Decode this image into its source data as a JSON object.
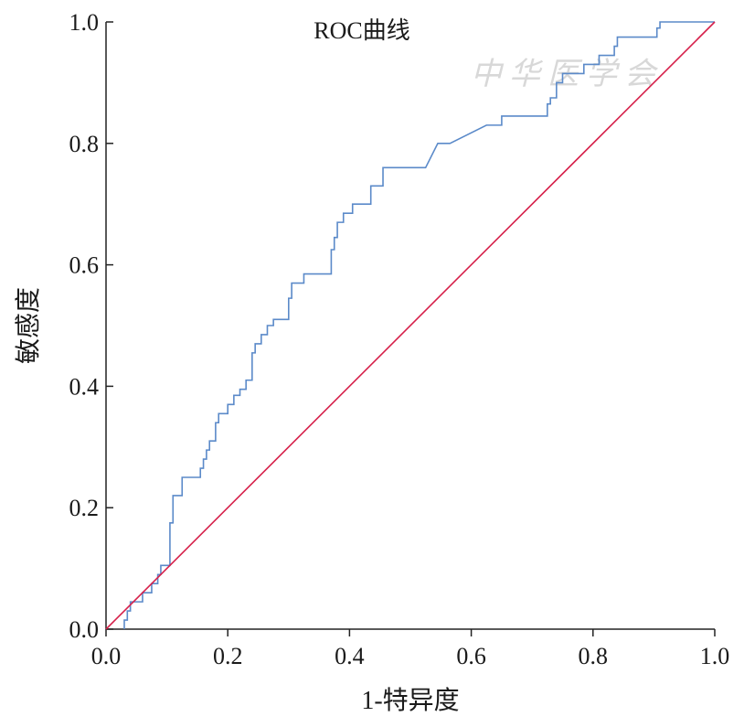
{
  "chart_data": {
    "type": "line",
    "title": "ROC曲线",
    "xlabel": "1-特异度",
    "ylabel": "敏感度",
    "watermark": "中华医学会",
    "xlim": [
      0,
      1
    ],
    "ylim": [
      0,
      1
    ],
    "xticks": [
      {
        "value": 0,
        "label": "0.0"
      },
      0.2,
      0.4,
      0.6,
      0.8,
      {
        "value": 1,
        "label": "1.0"
      }
    ],
    "yticks": [
      {
        "value": 0,
        "label": "0.0"
      },
      0.2,
      0.4,
      0.6,
      0.8,
      {
        "value": 1,
        "label": "1.0"
      }
    ],
    "series": [
      {
        "color": "#5b8ac9",
        "x": [
          0.03,
          0.03,
          0.035,
          0.035,
          0.04,
          0.04,
          0.06,
          0.06,
          0.075,
          0.075,
          0.085,
          0.085,
          0.09,
          0.09,
          0.105,
          0.105,
          0.11,
          0.11,
          0.125,
          0.125,
          0.155,
          0.155,
          0.16,
          0.16,
          0.165,
          0.165,
          0.17,
          0.17,
          0.18,
          0.18,
          0.185,
          0.185,
          0.2,
          0.2,
          0.21,
          0.21,
          0.22,
          0.22,
          0.23,
          0.23,
          0.24,
          0.24,
          0.245,
          0.245,
          0.255,
          0.255,
          0.265,
          0.265,
          0.275,
          0.275,
          0.3,
          0.3,
          0.305,
          0.305,
          0.325,
          0.325,
          0.37,
          0.37,
          0.375,
          0.375,
          0.38,
          0.38,
          0.39,
          0.39,
          0.405,
          0.405,
          0.435,
          0.435,
          0.455,
          0.455,
          0.525,
          0.545,
          0.565,
          0.625,
          0.65,
          0.65,
          0.725,
          0.725,
          0.73,
          0.73,
          0.74,
          0.74,
          0.75,
          0.75,
          0.785,
          0.785,
          0.81,
          0.81,
          0.835,
          0.835,
          0.84,
          0.84,
          0.905,
          0.905,
          0.91,
          0.91,
          1.0
        ],
        "values": [
          0,
          0.015,
          0.015,
          0.03,
          0.03,
          0.045,
          0.045,
          0.06,
          0.06,
          0.075,
          0.075,
          0.09,
          0.09,
          0.105,
          0.105,
          0.175,
          0.175,
          0.22,
          0.22,
          0.25,
          0.25,
          0.265,
          0.265,
          0.28,
          0.28,
          0.295,
          0.295,
          0.31,
          0.31,
          0.34,
          0.34,
          0.355,
          0.355,
          0.37,
          0.37,
          0.385,
          0.385,
          0.395,
          0.395,
          0.41,
          0.41,
          0.455,
          0.455,
          0.47,
          0.47,
          0.485,
          0.485,
          0.5,
          0.5,
          0.51,
          0.51,
          0.545,
          0.545,
          0.57,
          0.57,
          0.585,
          0.585,
          0.625,
          0.625,
          0.645,
          0.645,
          0.67,
          0.67,
          0.685,
          0.685,
          0.7,
          0.7,
          0.73,
          0.73,
          0.76,
          0.76,
          0.8,
          0.8,
          0.83,
          0.83,
          0.845,
          0.845,
          0.865,
          0.865,
          0.875,
          0.875,
          0.9,
          0.9,
          0.915,
          0.915,
          0.93,
          0.93,
          0.945,
          0.945,
          0.96,
          0.96,
          0.975,
          0.975,
          0.99,
          0.99,
          1.0,
          1.0
        ]
      },
      {
        "color": "#d6204a",
        "x": [
          0,
          1
        ],
        "values": [
          0,
          1
        ]
      }
    ]
  }
}
